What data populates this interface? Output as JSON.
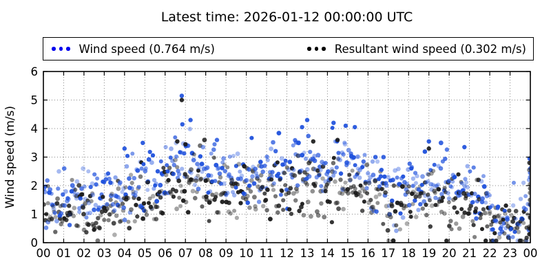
{
  "title": "Latest time: 2026-01-12 00:00:00 UTC",
  "legend": {
    "entries": [
      {
        "label": "Wind speed (0.764 m/s)",
        "marker_color": "#0000ee",
        "marker": "three-dots"
      },
      {
        "label": "Resultant wind speed (0.302 m/s)",
        "marker_color": "#000000",
        "marker": "three-dots"
      }
    ]
  },
  "axes": {
    "ylabel": "Wind speed (m/s)",
    "frame_color": "#000000",
    "grid_color": "#888888",
    "y_tick_labels": [
      "0",
      "1",
      "2",
      "3",
      "4",
      "5",
      "6"
    ],
    "x_tick_labels": [
      "00",
      "01",
      "02",
      "03",
      "04",
      "05",
      "06",
      "07",
      "08",
      "09",
      "10",
      "11",
      "12",
      "13",
      "14",
      "15",
      "16",
      "17",
      "18",
      "19",
      "20",
      "21",
      "22",
      "23",
      "00"
    ]
  },
  "chart_data": {
    "type": "scatter",
    "title": "Latest time: 2026-01-12 00:00:00 UTC",
    "xlabel": "",
    "ylabel": "Wind speed (m/s)",
    "ylim": [
      0,
      6
    ],
    "xlim_hours": [
      0,
      24
    ],
    "grid": true,
    "legend_position": "top-full-width",
    "points_per_hour": 22,
    "point_radius_px": 3.2,
    "random_seed": 42,
    "series": [
      {
        "name": "Wind speed",
        "current_value_label": "0.764 m/s",
        "color_rgb": [
          30,
          80,
          220
        ],
        "hourly_mean_spread_max": [
          [
            1.55,
            0.45,
            2.5
          ],
          [
            1.65,
            0.45,
            2.6
          ],
          [
            1.55,
            0.45,
            2.5
          ],
          [
            1.85,
            0.55,
            3.3
          ],
          [
            2.1,
            0.55,
            3.4
          ],
          [
            2.2,
            0.5,
            3.5
          ],
          [
            2.7,
            0.5,
            3.7
          ],
          [
            2.8,
            0.55,
            4.35
          ],
          [
            2.5,
            0.5,
            3.6
          ],
          [
            2.45,
            0.5,
            3.5
          ],
          [
            2.55,
            0.55,
            3.8
          ],
          [
            2.6,
            0.55,
            3.9
          ],
          [
            2.7,
            0.55,
            4.1
          ],
          [
            2.75,
            0.6,
            4.3
          ],
          [
            2.85,
            0.6,
            4.2
          ],
          [
            2.7,
            0.65,
            4.5
          ],
          [
            2.15,
            0.5,
            3.0
          ],
          [
            1.8,
            0.45,
            2.6
          ],
          [
            2.0,
            0.55,
            3.2
          ],
          [
            2.25,
            0.6,
            3.5
          ],
          [
            1.9,
            0.55,
            3.0
          ],
          [
            1.6,
            0.55,
            3.35
          ],
          [
            0.85,
            0.4,
            1.7
          ],
          [
            1.0,
            0.5,
            2.1
          ]
        ],
        "outliers": [
          [
            6.82,
            5.15
          ],
          [
            6.85,
            4.15
          ],
          [
            7.25,
            4.3
          ],
          [
            4.0,
            3.3
          ],
          [
            4.9,
            3.5
          ],
          [
            12.75,
            4.05
          ],
          [
            13.0,
            4.3
          ],
          [
            14.3,
            4.2
          ],
          [
            14.9,
            4.1
          ],
          [
            15.35,
            4.05
          ],
          [
            19.0,
            3.55
          ],
          [
            20.75,
            3.35
          ]
        ],
        "end_cluster_values": [
          2.95,
          2.6,
          2.45,
          2.3,
          2.2
        ]
      },
      {
        "name": "Resultant wind speed",
        "current_value_label": "0.302 m/s",
        "color_rgb": [
          25,
          25,
          25
        ],
        "hourly_mean_spread_max": [
          [
            1.05,
            0.45,
            2.1
          ],
          [
            1.15,
            0.45,
            2.2
          ],
          [
            1.0,
            0.45,
            2.0
          ],
          [
            1.3,
            0.55,
            2.9
          ],
          [
            1.5,
            0.55,
            3.0
          ],
          [
            1.55,
            0.5,
            2.9
          ],
          [
            1.95,
            0.55,
            3.2
          ],
          [
            2.1,
            0.6,
            3.6
          ],
          [
            1.8,
            0.55,
            3.0
          ],
          [
            1.7,
            0.5,
            2.9
          ],
          [
            1.8,
            0.55,
            3.3
          ],
          [
            1.85,
            0.55,
            3.2
          ],
          [
            1.9,
            0.6,
            3.4
          ],
          [
            2.0,
            0.6,
            3.5
          ],
          [
            2.0,
            0.6,
            3.6
          ],
          [
            1.9,
            0.6,
            3.5
          ],
          [
            1.5,
            0.5,
            2.5
          ],
          [
            1.2,
            0.45,
            2.0
          ],
          [
            1.4,
            0.55,
            2.6
          ],
          [
            1.6,
            0.55,
            3.0
          ],
          [
            1.3,
            0.5,
            2.4
          ],
          [
            1.05,
            0.5,
            2.2
          ],
          [
            0.6,
            0.35,
            1.3
          ],
          [
            0.7,
            0.4,
            1.6
          ]
        ],
        "outliers": [
          [
            6.82,
            5.0
          ],
          [
            6.6,
            3.55
          ],
          [
            7.0,
            3.45
          ],
          [
            13.3,
            3.55
          ],
          [
            14.5,
            3.6
          ],
          [
            19.0,
            3.3
          ]
        ],
        "end_cluster_values": [
          2.8,
          2.55,
          2.05,
          1.9,
          1.75,
          1.5,
          1.35,
          0.9,
          0.5,
          0.3
        ]
      }
    ]
  }
}
